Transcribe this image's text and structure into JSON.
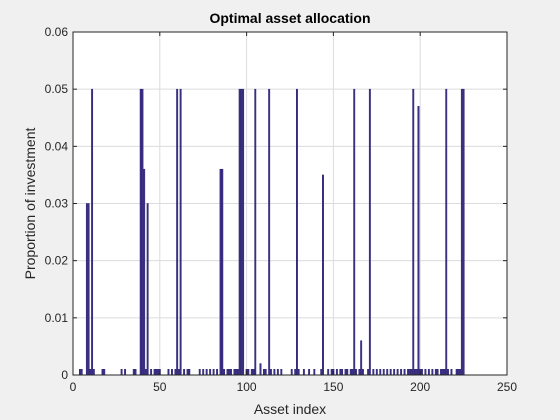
{
  "chart_data": {
    "type": "bar",
    "title": "Optimal asset allocation",
    "xlabel": "Asset index",
    "ylabel": "Proportion of investment",
    "xlim": [
      0,
      250
    ],
    "ylim": [
      0,
      0.06
    ],
    "xticks": [
      0,
      50,
      100,
      150,
      200,
      250
    ],
    "yticks": [
      0,
      0.01,
      0.02,
      0.03,
      0.04,
      0.05,
      0.06
    ],
    "xtick_labels": [
      "0",
      "50",
      "100",
      "150",
      "200",
      "250"
    ],
    "ytick_labels": [
      "0",
      "0.01",
      "0.02",
      "0.03",
      "0.04",
      "0.05",
      "0.06"
    ],
    "grid": true,
    "bar_color": "#3f3286",
    "x": [
      4,
      5,
      8,
      9,
      10,
      11,
      12,
      17,
      18,
      28,
      30,
      35,
      36,
      39,
      40,
      41,
      42,
      43,
      45,
      47,
      48,
      49,
      50,
      55,
      57,
      59,
      60,
      61,
      62,
      64,
      66,
      67,
      73,
      75,
      77,
      79,
      81,
      83,
      85,
      86,
      87,
      89,
      90,
      91,
      93,
      94,
      95,
      96,
      97,
      98,
      100,
      101,
      103,
      104,
      105,
      108,
      110,
      111,
      113,
      114,
      116,
      118,
      120,
      126,
      128,
      129,
      130,
      133,
      136,
      139,
      143,
      144,
      147,
      149,
      150,
      152,
      154,
      155,
      157,
      158,
      160,
      161,
      162,
      163,
      165,
      166,
      167,
      170,
      171,
      173,
      175,
      177,
      179,
      181,
      183,
      185,
      187,
      189,
      191,
      193,
      194,
      195,
      196,
      197,
      198,
      199,
      200,
      201,
      203,
      205,
      207,
      209,
      210,
      212,
      213,
      214,
      215,
      216,
      218,
      221,
      222,
      223,
      224,
      225
    ],
    "values": [
      0.001,
      0.001,
      0.03,
      0.03,
      0.001,
      0.05,
      0.001,
      0.001,
      0.001,
      0.001,
      0.001,
      0.001,
      0.001,
      0.05,
      0.05,
      0.036,
      0.001,
      0.03,
      0.001,
      0.001,
      0.001,
      0.001,
      0.001,
      0.001,
      0.001,
      0.001,
      0.05,
      0.001,
      0.05,
      0.001,
      0.001,
      0.001,
      0.001,
      0.001,
      0.001,
      0.001,
      0.001,
      0.001,
      0.036,
      0.036,
      0.001,
      0.001,
      0.001,
      0.001,
      0.001,
      0.001,
      0.001,
      0.05,
      0.05,
      0.05,
      0.001,
      0.001,
      0.001,
      0.001,
      0.05,
      0.002,
      0.001,
      0.001,
      0.05,
      0.001,
      0.001,
      0.001,
      0.001,
      0.001,
      0.001,
      0.05,
      0.001,
      0.001,
      0.001,
      0.001,
      0.001,
      0.035,
      0.001,
      0.001,
      0.001,
      0.001,
      0.001,
      0.001,
      0.001,
      0.001,
      0.001,
      0.001,
      0.05,
      0.001,
      0.001,
      0.006,
      0.001,
      0.001,
      0.05,
      0.001,
      0.001,
      0.001,
      0.001,
      0.001,
      0.001,
      0.001,
      0.001,
      0.001,
      0.001,
      0.001,
      0.001,
      0.001,
      0.05,
      0.001,
      0.001,
      0.047,
      0.001,
      0.001,
      0.001,
      0.001,
      0.001,
      0.001,
      0.001,
      0.001,
      0.001,
      0.001,
      0.05,
      0.001,
      0.001,
      0.001,
      0.001,
      0.001,
      0.05,
      0.05
    ]
  }
}
